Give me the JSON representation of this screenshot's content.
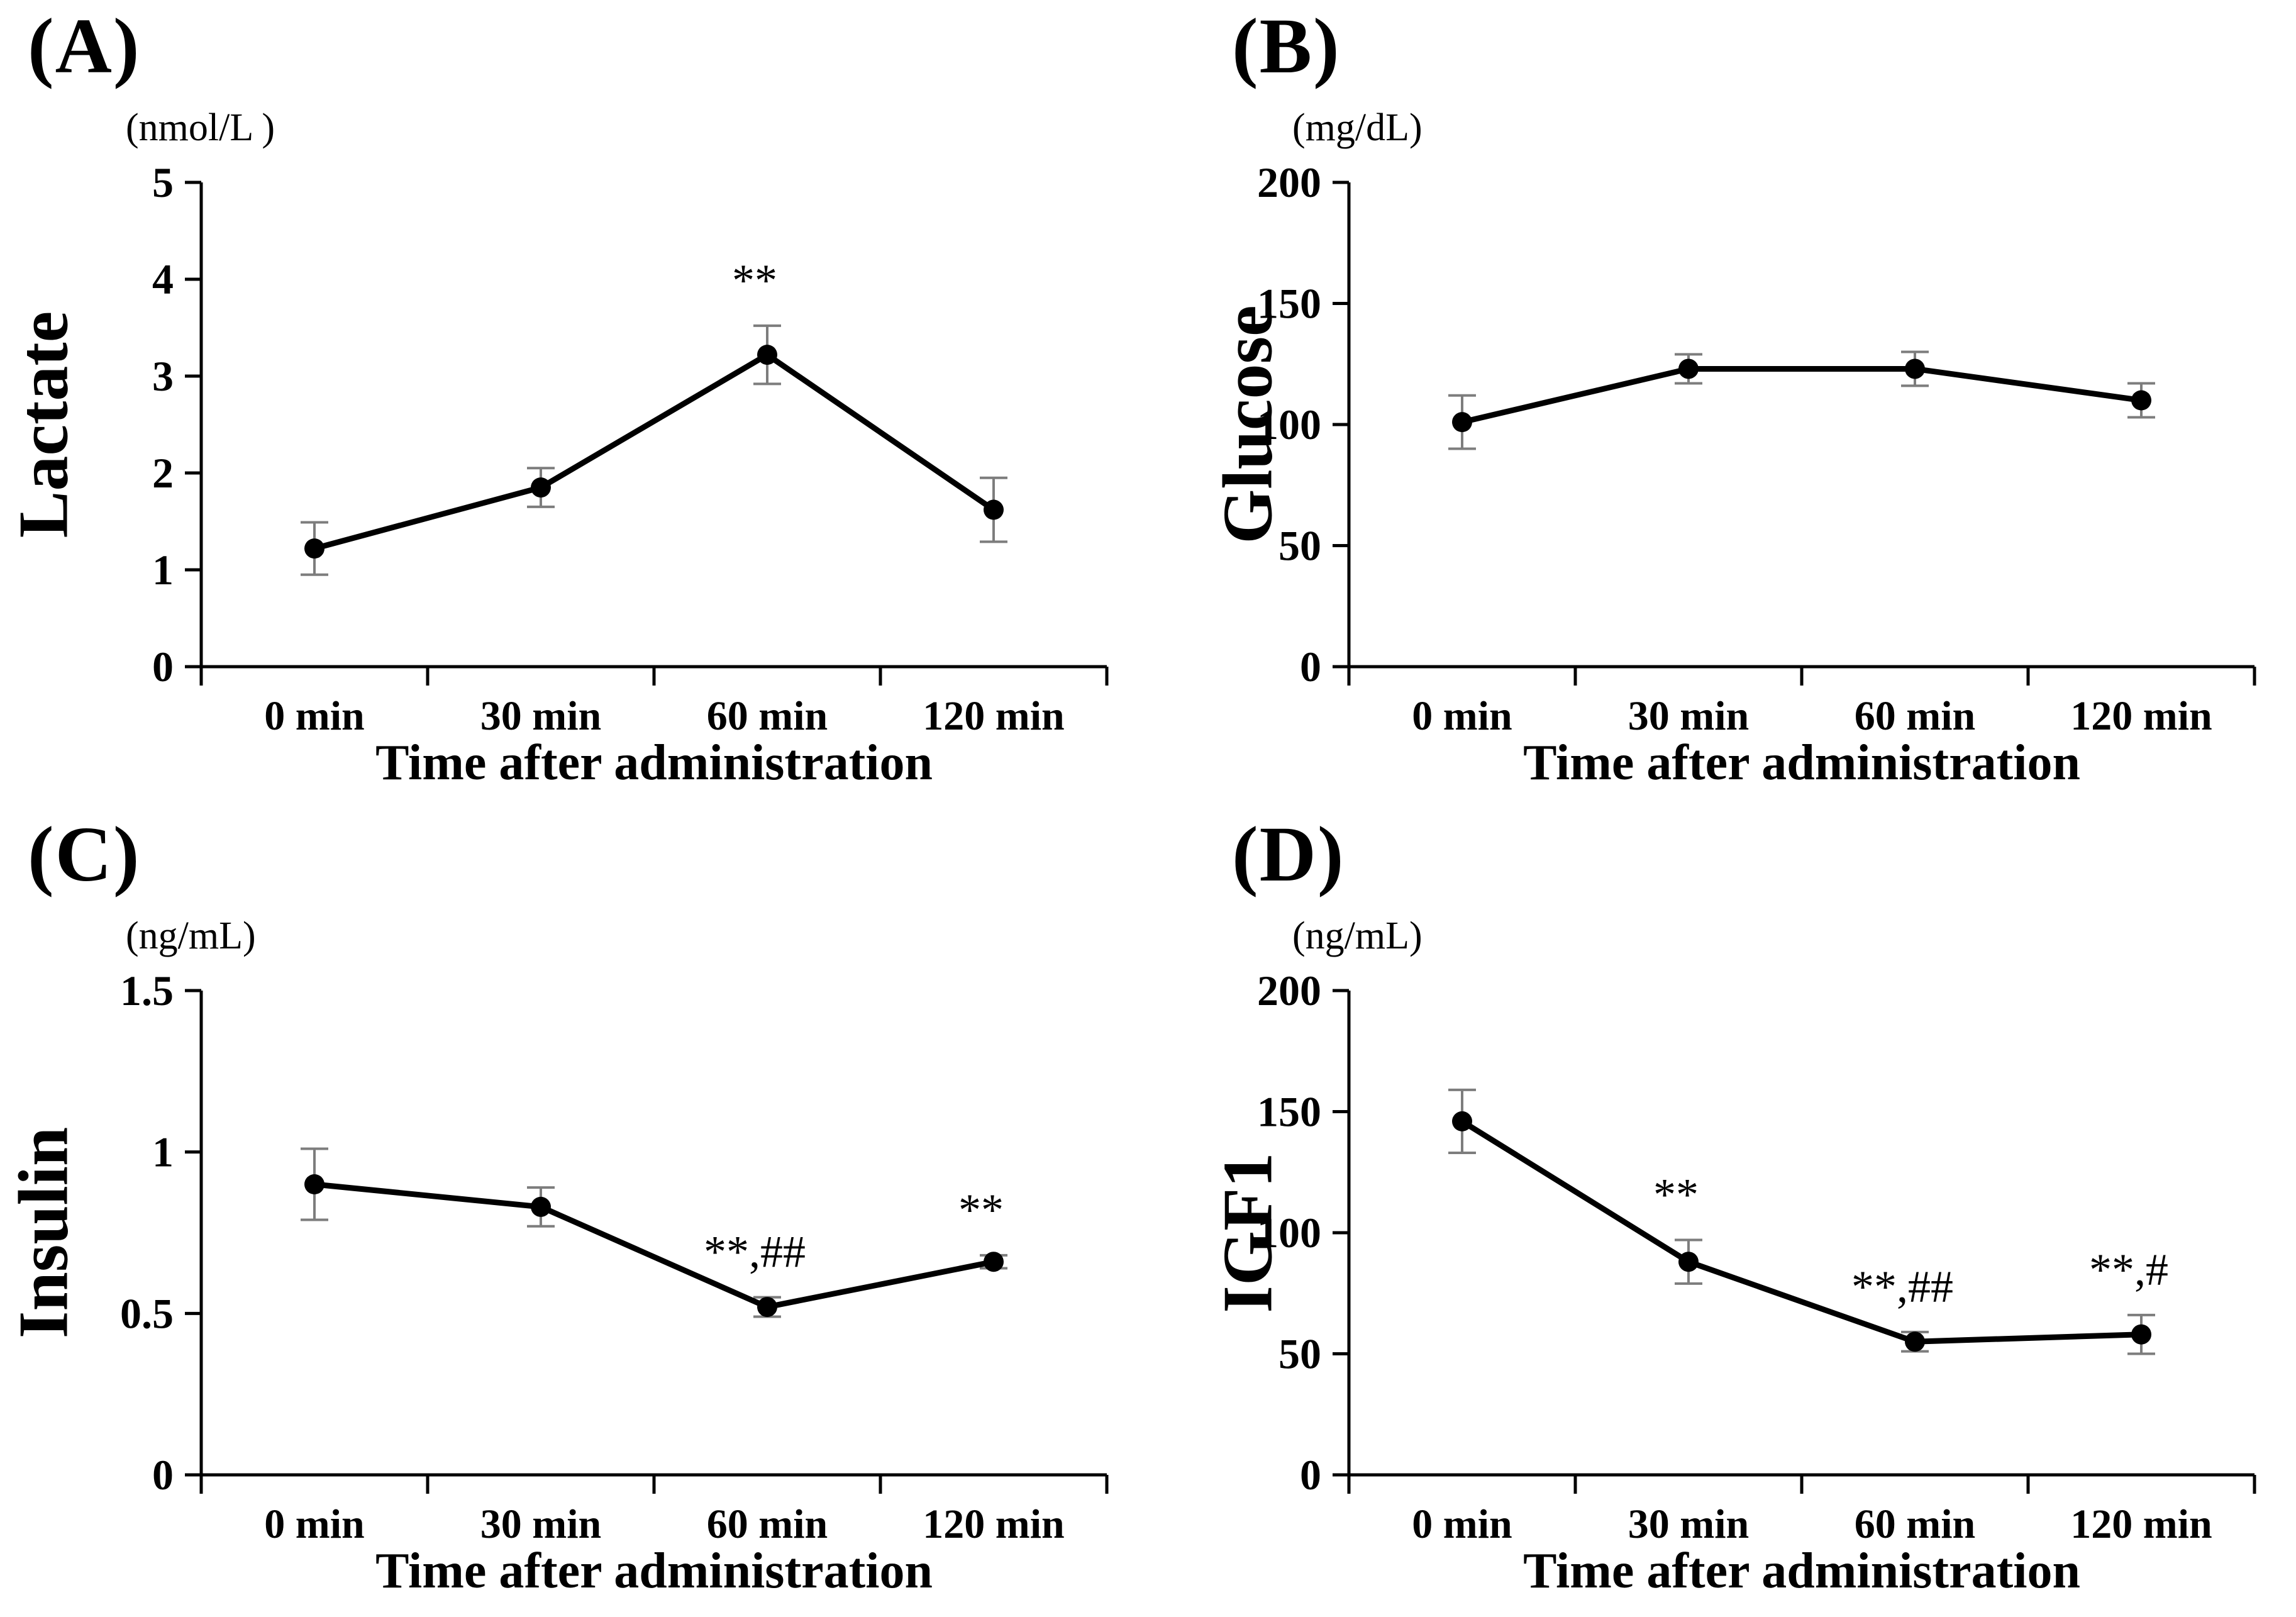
{
  "figure": {
    "background": "#ffffff",
    "description": "Four-panel line chart figure of blood metabolite/hormone time courses"
  },
  "colors": {
    "line": "#000000",
    "marker": "#000000",
    "error_bar": "#7d7d7d",
    "axis": "#000000",
    "text": "#000000",
    "background": "#ffffff"
  },
  "chart_data": [
    {
      "type": "line",
      "panel": "(A)",
      "ylabel": "Lactate",
      "unit": "(nmol/L )",
      "xlabel": "Time after administration",
      "categories": [
        "0 min",
        "30 min",
        "60 min",
        "120 min"
      ],
      "values": [
        1.22,
        1.85,
        3.22,
        1.62
      ],
      "errors": [
        0.27,
        0.2,
        0.3,
        0.33
      ],
      "annotations": [
        "",
        "",
        "**",
        ""
      ],
      "ylim": [
        0,
        5
      ],
      "yticks": [
        0,
        1,
        2,
        3,
        4,
        5
      ],
      "ytick_labels": [
        "0",
        "1",
        "2",
        "3",
        "4",
        "5"
      ],
      "grid": "off",
      "legend": "none"
    },
    {
      "type": "line",
      "panel": "(B)",
      "ylabel": "Glucose",
      "unit": "(mg/dL)",
      "xlabel": "Time after administration",
      "categories": [
        "0 min",
        "30 min",
        "60 min",
        "120 min"
      ],
      "values": [
        101,
        123,
        123,
        110
      ],
      "errors": [
        11,
        6,
        7,
        7
      ],
      "annotations": [
        "",
        "",
        "",
        ""
      ],
      "ylim": [
        0,
        200
      ],
      "yticks": [
        0,
        50,
        100,
        150,
        200
      ],
      "ytick_labels": [
        "0",
        "50",
        "100",
        "150",
        "200"
      ],
      "grid": "off",
      "legend": "none"
    },
    {
      "type": "line",
      "panel": "(C)",
      "ylabel": "Insulin",
      "unit": "(ng/mL)",
      "xlabel": "Time after administration",
      "categories": [
        "0 min",
        "30 min",
        "60 min",
        "120 min"
      ],
      "values": [
        0.9,
        0.83,
        0.52,
        0.66
      ],
      "errors": [
        0.11,
        0.06,
        0.03,
        0.02
      ],
      "annotations": [
        "",
        "",
        "**,##",
        "**"
      ],
      "ylim": [
        0,
        1.5
      ],
      "yticks": [
        0,
        0.5,
        1,
        1.5
      ],
      "ytick_labels": [
        "0",
        "0.5",
        "1",
        "1.5"
      ],
      "grid": "off",
      "legend": "none"
    },
    {
      "type": "line",
      "panel": "(D)",
      "ylabel": "IGF1",
      "unit": "(ng/mL)",
      "xlabel": "Time after administration",
      "categories": [
        "0 min",
        "30 min",
        "60 min",
        "120 min"
      ],
      "values": [
        146,
        88,
        55,
        58
      ],
      "errors": [
        13,
        9,
        4,
        8
      ],
      "annotations": [
        "",
        "**",
        "**,##",
        "**,#"
      ],
      "ylim": [
        0,
        200
      ],
      "yticks": [
        0,
        50,
        100,
        150,
        200
      ],
      "ytick_labels": [
        "0",
        "50",
        "100",
        "150",
        "200"
      ],
      "grid": "off",
      "legend": "none"
    }
  ]
}
